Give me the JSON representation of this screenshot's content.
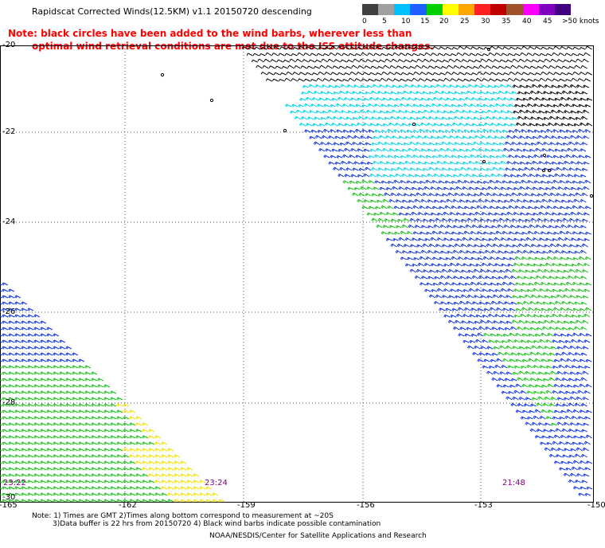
{
  "header": {
    "title": "Rapidscat Corrected Winds(12.5KM) v1.1 20150720 descending",
    "note_line1": "Note: black circles have been added to the wind barbs, wherever less than",
    "note_line2": "optimal wind retrieval conditions are met due to the ISS attitude changes."
  },
  "scale": {
    "labels": [
      "0",
      "5",
      "10",
      "15",
      "20",
      "25",
      "30",
      "35",
      "40",
      "45",
      ">50 knots"
    ],
    "colors": [
      "#404040",
      "#a0a0a0",
      "#00bfff",
      "#1e5fff",
      "#00d000",
      "#ffff00",
      "#ffa500",
      "#ff2020",
      "#c00000",
      "#a0522d",
      "#ff00ff",
      "#8000c0",
      "#400080"
    ]
  },
  "axes": {
    "lat_labels": [
      "-20",
      "-22",
      "-24",
      "-26",
      "-28",
      "-30"
    ],
    "lon_labels": [
      "-165",
      "-162",
      "-159",
      "-156",
      "-153",
      "-150"
    ]
  },
  "times": [
    "23:22",
    "23:24",
    "21:48"
  ],
  "footer": {
    "line1": "Note: 1) Times are GMT 2)Times along bottom correspond to measurement at ~20S",
    "line2": "3)Data buffer is 22 hrs from 20150720 4) Black wind barbs indicate possible contamination",
    "line3": "NOAA/NESDIS/Center for Satellite Applications and Research"
  },
  "colors": {
    "black": "#000000",
    "cyan": "#00d0e0",
    "blue": "#1030e0",
    "green": "#10c010",
    "yellow": "#f0e000",
    "time": "#800080",
    "note": "#ff0000"
  }
}
